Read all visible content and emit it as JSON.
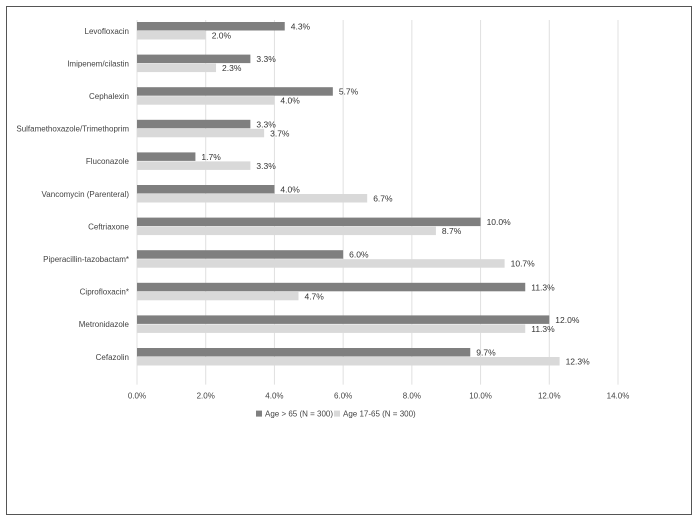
{
  "chart_data": {
    "type": "bar",
    "orientation": "horizontal",
    "categories": [
      "Levofloxacin",
      "Imipenem/cilastin",
      "Cephalexin",
      "Sulfamethoxazole/Trimethoprim",
      "Fluconazole",
      "Vancomycin (Parenteral)",
      "Ceftriaxone",
      "Piperacillin-tazobactam*",
      "Ciprofloxacin*",
      "Metronidazole",
      "Cefazolin"
    ],
    "series": [
      {
        "name": "Age > 65 (N = 300)",
        "color": "#7f7f7f",
        "values": [
          4.3,
          3.3,
          5.7,
          3.3,
          1.7,
          4.0,
          10.0,
          6.0,
          11.3,
          12.0,
          9.7
        ],
        "labels": [
          "4.3%",
          "3.3%",
          "5.7%",
          "3.3%",
          "1.7%",
          "4.0%",
          "10.0%",
          "6.0%",
          "11.3%",
          "12.0%",
          "9.7%"
        ]
      },
      {
        "name": "Age 17-65 (N = 300)",
        "color": "#d9d9d9",
        "values": [
          2.0,
          2.3,
          4.0,
          3.7,
          3.3,
          6.7,
          8.7,
          10.7,
          4.7,
          11.3,
          12.3
        ],
        "labels": [
          "2.0%",
          "2.3%",
          "4.0%",
          "3.7%",
          "3.3%",
          "6.7%",
          "8.7%",
          "10.7%",
          "4.7%",
          "11.3%",
          "12.3%"
        ]
      }
    ],
    "xlim": [
      0,
      14
    ],
    "xticks": [
      0,
      2,
      4,
      6,
      8,
      10,
      12,
      14
    ],
    "xtick_labels": [
      "0.0%",
      "2.0%",
      "4.0%",
      "6.0%",
      "8.0%",
      "10.0%",
      "12.0%",
      "14.0%"
    ],
    "grid": true,
    "legend_position": "bottom"
  }
}
